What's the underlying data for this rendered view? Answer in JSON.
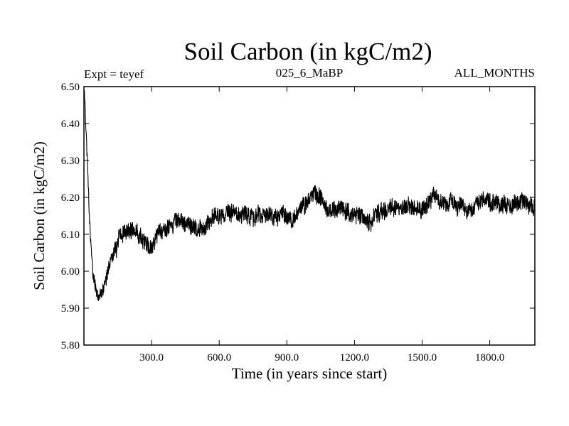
{
  "chart_data": {
    "type": "line",
    "title": "Soil Carbon (in kgC/m2)",
    "subtitle_left": "Expt = teyef",
    "subtitle_center": "025_6_MaBP",
    "subtitle_right": "ALL_MONTHS",
    "xlabel": "Time (in years since start)",
    "ylabel": "Soil Carbon (in kgC/m2)",
    "xlim": [
      0,
      2000
    ],
    "ylim": [
      5.8,
      6.5
    ],
    "x_ticks": [
      300,
      600,
      900,
      1200,
      1500,
      1800
    ],
    "x_tick_labels": [
      "300.0",
      "600.0",
      "900.0",
      "1200.0",
      "1500.0",
      "1800.0"
    ],
    "y_ticks": [
      5.8,
      5.9,
      6.0,
      6.1,
      6.2,
      6.3,
      6.4,
      6.5
    ],
    "y_tick_labels": [
      "5.80",
      "5.90",
      "6.00",
      "6.10",
      "6.20",
      "6.30",
      "6.40",
      "6.50"
    ],
    "grid": false,
    "line_color": "#000000",
    "series": [
      {
        "name": "Soil Carbon",
        "description": "noisy annual series; values below give the approximate running mean and the band half-width of the fluctuation",
        "x": [
          0,
          5,
          15,
          25,
          40,
          55,
          70,
          90,
          110,
          140,
          180,
          220,
          260,
          300,
          340,
          380,
          420,
          460,
          500,
          540,
          580,
          620,
          700,
          800,
          900,
          950,
          1000,
          1050,
          1100,
          1200,
          1300,
          1400,
          1500,
          1550,
          1600,
          1700,
          1800,
          1900,
          2000
        ],
        "mean": [
          6.49,
          6.45,
          6.3,
          6.15,
          6.0,
          5.95,
          5.94,
          5.97,
          6.02,
          6.07,
          6.1,
          6.1,
          6.08,
          6.07,
          6.09,
          6.12,
          6.13,
          6.12,
          6.11,
          6.13,
          6.14,
          6.15,
          6.14,
          6.14,
          6.14,
          6.16,
          6.19,
          6.18,
          6.16,
          6.15,
          6.16,
          6.17,
          6.17,
          6.2,
          6.18,
          6.19,
          6.18,
          6.18,
          6.18
        ],
        "amplitude": [
          0.01,
          0.02,
          0.03,
          0.03,
          0.03,
          0.03,
          0.03,
          0.03,
          0.03,
          0.04,
          0.04,
          0.04,
          0.04,
          0.04,
          0.04,
          0.04,
          0.04,
          0.04,
          0.04,
          0.04,
          0.04,
          0.04,
          0.04,
          0.04,
          0.04,
          0.04,
          0.04,
          0.04,
          0.04,
          0.04,
          0.04,
          0.04,
          0.04,
          0.04,
          0.04,
          0.04,
          0.04,
          0.04,
          0.04
        ]
      }
    ]
  }
}
